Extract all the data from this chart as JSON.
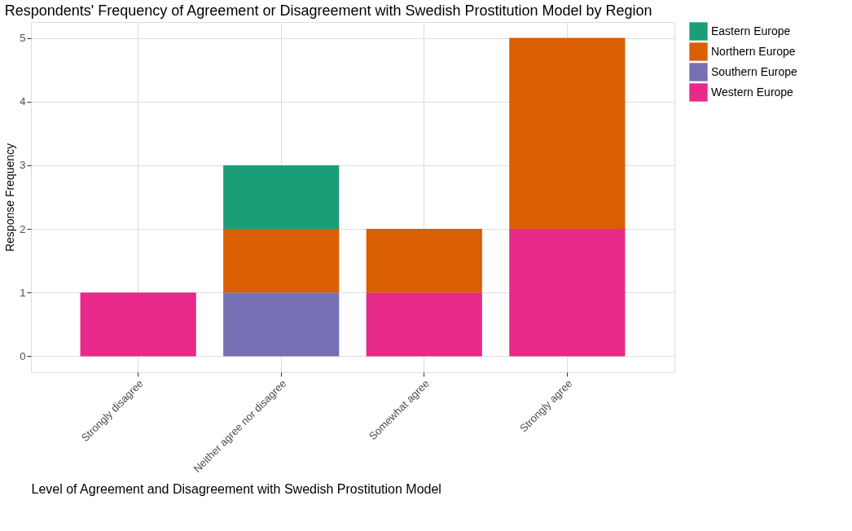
{
  "chart_data": {
    "type": "bar",
    "title": "Respondents' Frequency of Agreement or Disagreement with Swedish Prostitution Model by Region",
    "xlabel": "Level of Agreement and Disagreement with Swedish Prostitution Model",
    "ylabel": "Response Frequency",
    "categories": [
      "Strongly disagree",
      "Neither agree nor disagree",
      "Somewhat agree",
      "Strongly agree"
    ],
    "stacked": true,
    "series": [
      {
        "name": "Western Europe",
        "color": "#e7298a",
        "values": [
          1,
          null,
          1,
          2
        ]
      },
      {
        "name": "Southern Europe",
        "color": "#7570b3",
        "values": [
          null,
          1,
          null,
          null
        ]
      },
      {
        "name": "Northern Europe",
        "color": "#d95f02",
        "values": [
          null,
          1,
          1,
          3
        ]
      },
      {
        "name": "Eastern Europe",
        "color": "#1b9e77",
        "values": [
          null,
          1,
          null,
          null
        ]
      }
    ],
    "ylim": [
      -0.25,
      5.25
    ],
    "yticks": [
      0,
      1,
      2,
      3,
      4,
      5
    ],
    "grid": true,
    "legend": "right"
  }
}
